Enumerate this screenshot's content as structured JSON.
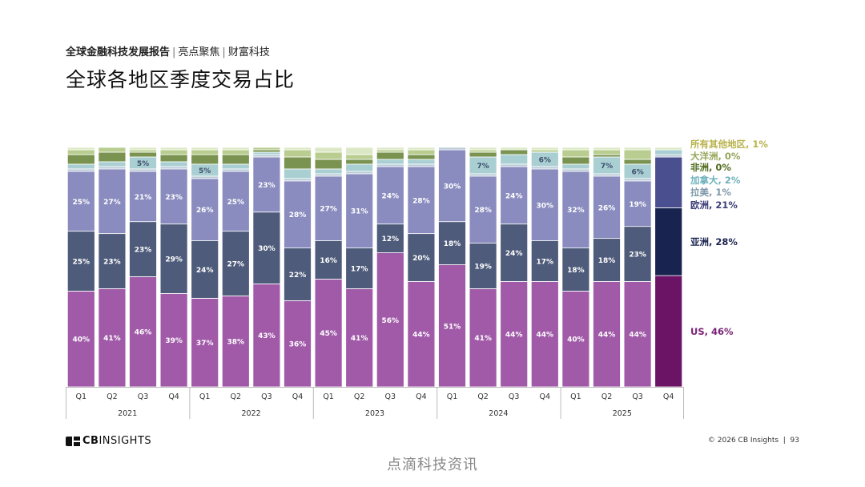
{
  "header": {
    "report": "全球金融科技发展报告",
    "section1": "亮点聚焦",
    "section2": "财富科技"
  },
  "title": "全球各地区季度交易占比",
  "footer": {
    "logo_cb": "CB",
    "logo_insights": "INSIGHTS",
    "copyright": "© 2026 CB Insights",
    "page": "93",
    "watermark": "点滴科技资讯"
  },
  "colors": {
    "US": "#a05aa8",
    "Asia": "#4e5b7a",
    "Europe": "#8a8cbf",
    "LatAm": "#b9cad6",
    "Canada": "#a9cfd3",
    "Africa": "#7a9350",
    "Oceania": "#b8cd8f",
    "Other": "#dce8c5",
    "highlight_US": "#6b1466",
    "highlight_Asia": "#18234f",
    "highlight_Europe": "#4a4f8f"
  },
  "chart_data": {
    "type": "bar",
    "stacked": true,
    "percent": true,
    "categories": [
      "Q1",
      "Q2",
      "Q3",
      "Q4",
      "Q1",
      "Q2",
      "Q3",
      "Q4",
      "Q1",
      "Q2",
      "Q3",
      "Q4",
      "Q1",
      "Q2",
      "Q3",
      "Q4",
      "Q1",
      "Q2",
      "Q3",
      "Q4"
    ],
    "year_groups": [
      {
        "label": "2021",
        "count": 4
      },
      {
        "label": "2022",
        "count": 4
      },
      {
        "label": "2023",
        "count": 4
      },
      {
        "label": "2024",
        "count": 4
      },
      {
        "label": "2025",
        "count": 4
      }
    ],
    "series": [
      {
        "key": "US",
        "name": "US",
        "values": [
          40,
          41,
          46,
          39,
          37,
          38,
          43,
          36,
          45,
          41,
          56,
          44,
          51,
          41,
          44,
          44,
          40,
          44,
          44,
          46
        ]
      },
      {
        "key": "Asia",
        "name": "亚洲",
        "values": [
          25,
          23,
          23,
          29,
          24,
          27,
          30,
          22,
          16,
          17,
          12,
          20,
          18,
          19,
          24,
          17,
          18,
          18,
          23,
          28
        ]
      },
      {
        "key": "Europe",
        "name": "欧洲",
        "values": [
          25,
          27,
          21,
          23,
          26,
          25,
          23,
          28,
          27,
          31,
          24,
          28,
          30,
          28,
          24,
          30,
          32,
          26,
          19,
          21
        ]
      },
      {
        "key": "LatAm",
        "name": "拉美",
        "values": [
          1,
          1,
          1,
          1,
          1,
          1,
          1,
          1,
          1,
          1,
          1,
          1,
          1,
          1,
          1,
          1,
          1,
          1,
          1,
          1
        ]
      },
      {
        "key": "Canada",
        "name": "加拿大",
        "values": [
          2,
          2,
          5,
          2,
          5,
          2,
          1,
          4,
          2,
          3,
          2,
          2,
          0,
          7,
          4,
          6,
          2,
          7,
          6,
          2
        ]
      },
      {
        "key": "Africa",
        "name": "非洲",
        "values": [
          4,
          4,
          2,
          3,
          4,
          4,
          1,
          5,
          4,
          2,
          3,
          2,
          0,
          2,
          2,
          0,
          3,
          1,
          2,
          0
        ]
      },
      {
        "key": "Oceania",
        "name": "大洋洲",
        "values": [
          2,
          2,
          1,
          2,
          2,
          2,
          1,
          3,
          3,
          2,
          1,
          2,
          0,
          1,
          0,
          1,
          3,
          2,
          4,
          0
        ]
      },
      {
        "key": "Other",
        "name": "所有其他地区",
        "values": [
          1,
          0,
          1,
          1,
          1,
          1,
          0,
          1,
          2,
          3,
          1,
          1,
          0,
          1,
          1,
          1,
          1,
          1,
          1,
          1
        ]
      }
    ],
    "bar_labels": {
      "US": [
        "40%",
        "41%",
        "46%",
        "39%",
        "37%",
        "38%",
        "43%",
        "36%",
        "45%",
        "41%",
        "56%",
        "44%",
        "51%",
        "41%",
        "44%",
        "44%",
        "40%",
        "44%",
        "44%",
        ""
      ],
      "Asia": [
        "25%",
        "23%",
        "23%",
        "29%",
        "24%",
        "27%",
        "30%",
        "22%",
        "16%",
        "17%",
        "12%",
        "20%",
        "18%",
        "19%",
        "24%",
        "17%",
        "18%",
        "18%",
        "23%",
        ""
      ],
      "Europe": [
        "25%",
        "27%",
        "21%",
        "23%",
        "26%",
        "25%",
        "23%",
        "28%",
        "27%",
        "31%",
        "24%",
        "28%",
        "30%",
        "28%",
        "24%",
        "30%",
        "32%",
        "26%",
        "19%",
        ""
      ],
      "Canada": [
        "",
        "",
        "5%",
        "",
        "5%",
        "",
        "",
        "",
        "",
        "",
        "",
        "",
        "",
        "7%",
        "",
        "6%",
        "",
        "7%",
        "6%",
        ""
      ]
    },
    "highlight_index": 19,
    "legend": [
      {
        "key": "Other",
        "text": "所有其他地区, 1%"
      },
      {
        "key": "Oceania",
        "text": "大洋洲, 0%"
      },
      {
        "key": "Africa",
        "text": "非洲, 0%"
      },
      {
        "key": "Canada",
        "text": "加拿大, 2%"
      },
      {
        "key": "LatAm",
        "text": "拉美, 1%"
      },
      {
        "key": "Europe",
        "text": "欧洲, 21%"
      },
      {
        "key": "Asia",
        "text": "亚洲, 28%"
      },
      {
        "key": "US",
        "text": "US, 46%"
      }
    ],
    "ylim": [
      0,
      100
    ]
  }
}
